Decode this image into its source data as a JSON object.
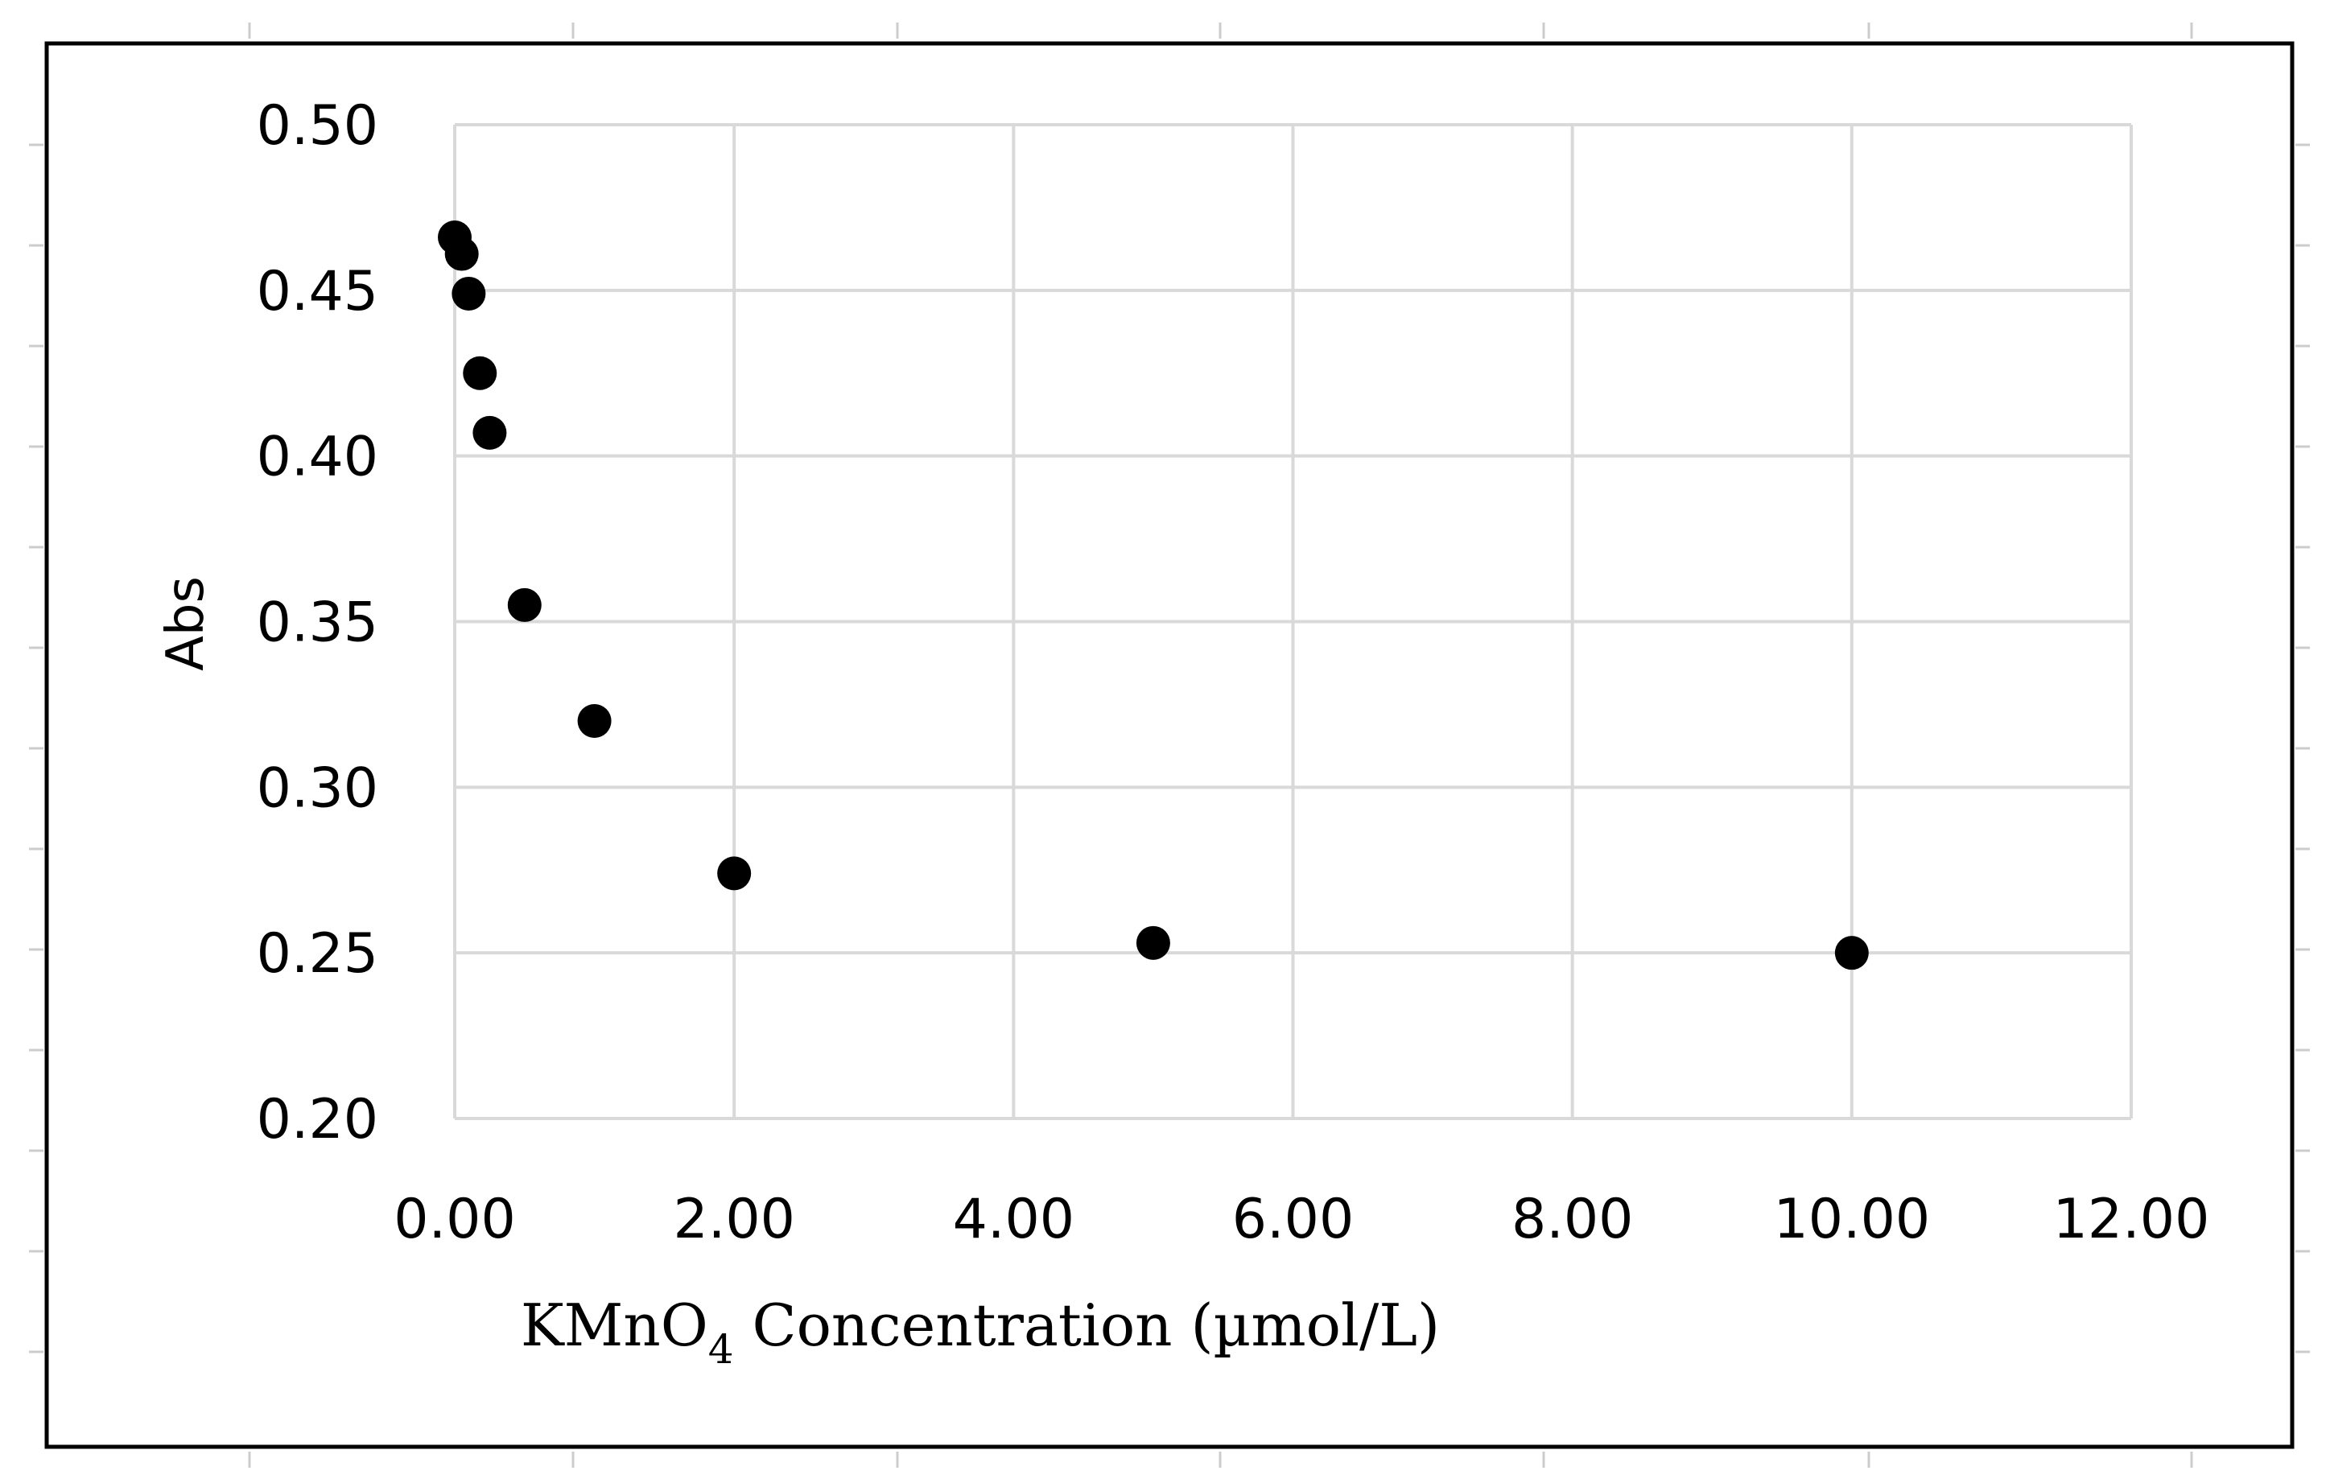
{
  "chart_data": {
    "type": "scatter",
    "title": "",
    "xlabel": {
      "prefix": "KMnO",
      "subscript": "4",
      "suffix": " Concentration (µmol/L)"
    },
    "ylabel": "Abs",
    "xlim": [
      0,
      12
    ],
    "ylim": [
      0.2,
      0.5
    ],
    "x_tick_labels": [
      "0.00",
      "2.00",
      "4.00",
      "6.00",
      "8.00",
      "10.00",
      "12.00"
    ],
    "y_tick_labels": [
      "0.20",
      "0.25",
      "0.30",
      "0.35",
      "0.40",
      "0.45",
      "0.50"
    ],
    "grid": true,
    "legend": "none",
    "marker_color": "#000000",
    "series": [
      {
        "points": [
          {
            "x": 0.0,
            "y": 0.466
          },
          {
            "x": 0.05,
            "y": 0.461
          },
          {
            "x": 0.1,
            "y": 0.449
          },
          {
            "x": 0.18,
            "y": 0.425
          },
          {
            "x": 0.25,
            "y": 0.407
          },
          {
            "x": 0.5,
            "y": 0.355
          },
          {
            "x": 1.0,
            "y": 0.32
          },
          {
            "x": 2.0,
            "y": 0.274
          },
          {
            "x": 5.0,
            "y": 0.253
          },
          {
            "x": 10.0,
            "y": 0.25
          }
        ]
      }
    ]
  }
}
